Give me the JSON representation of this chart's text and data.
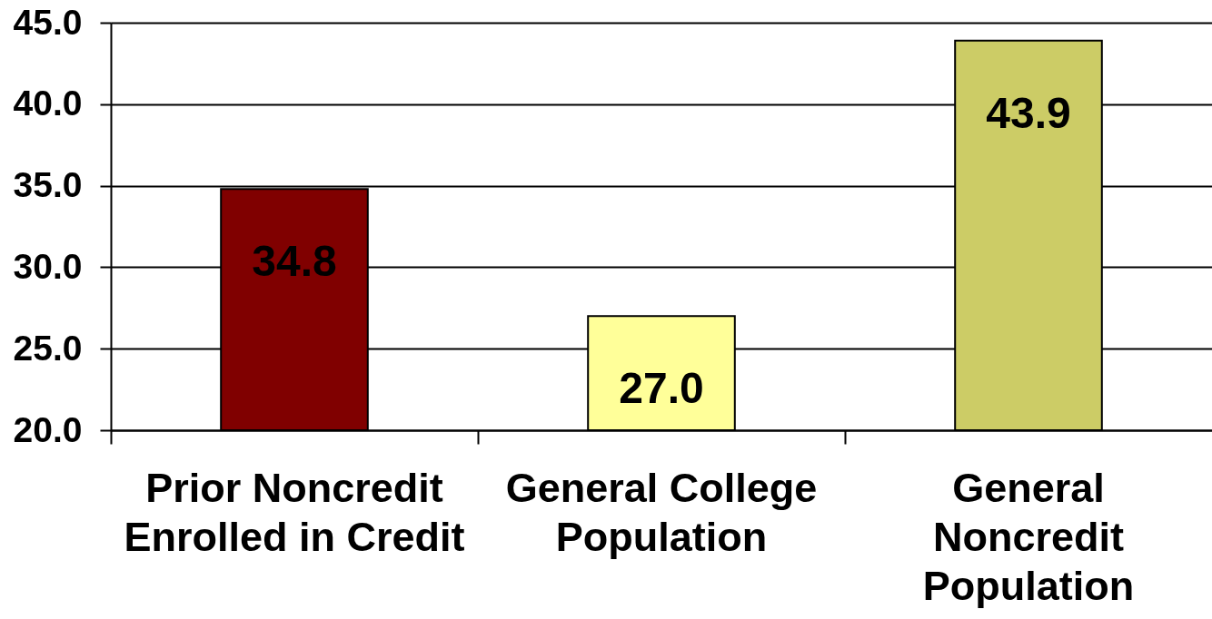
{
  "chart_data": {
    "type": "bar",
    "categories": [
      "Prior Noncredit Enrolled in Credit",
      "General College Population",
      "General Noncredit Population"
    ],
    "values": [
      34.8,
      27.0,
      43.9
    ],
    "colors": [
      "#800000",
      "#ffff99",
      "#cccc66"
    ],
    "value_labels": [
      "34.8",
      "27.0",
      "43.9"
    ],
    "ylim": [
      20,
      45
    ],
    "yticks": [
      {
        "value": 20,
        "label": "20.0"
      },
      {
        "value": 25,
        "label": "25.0"
      },
      {
        "value": 30,
        "label": "30.0"
      },
      {
        "value": 35,
        "label": "35.0"
      },
      {
        "value": 40,
        "label": "40.0"
      },
      {
        "value": 45,
        "label": "45.0"
      }
    ],
    "grid": "y"
  }
}
